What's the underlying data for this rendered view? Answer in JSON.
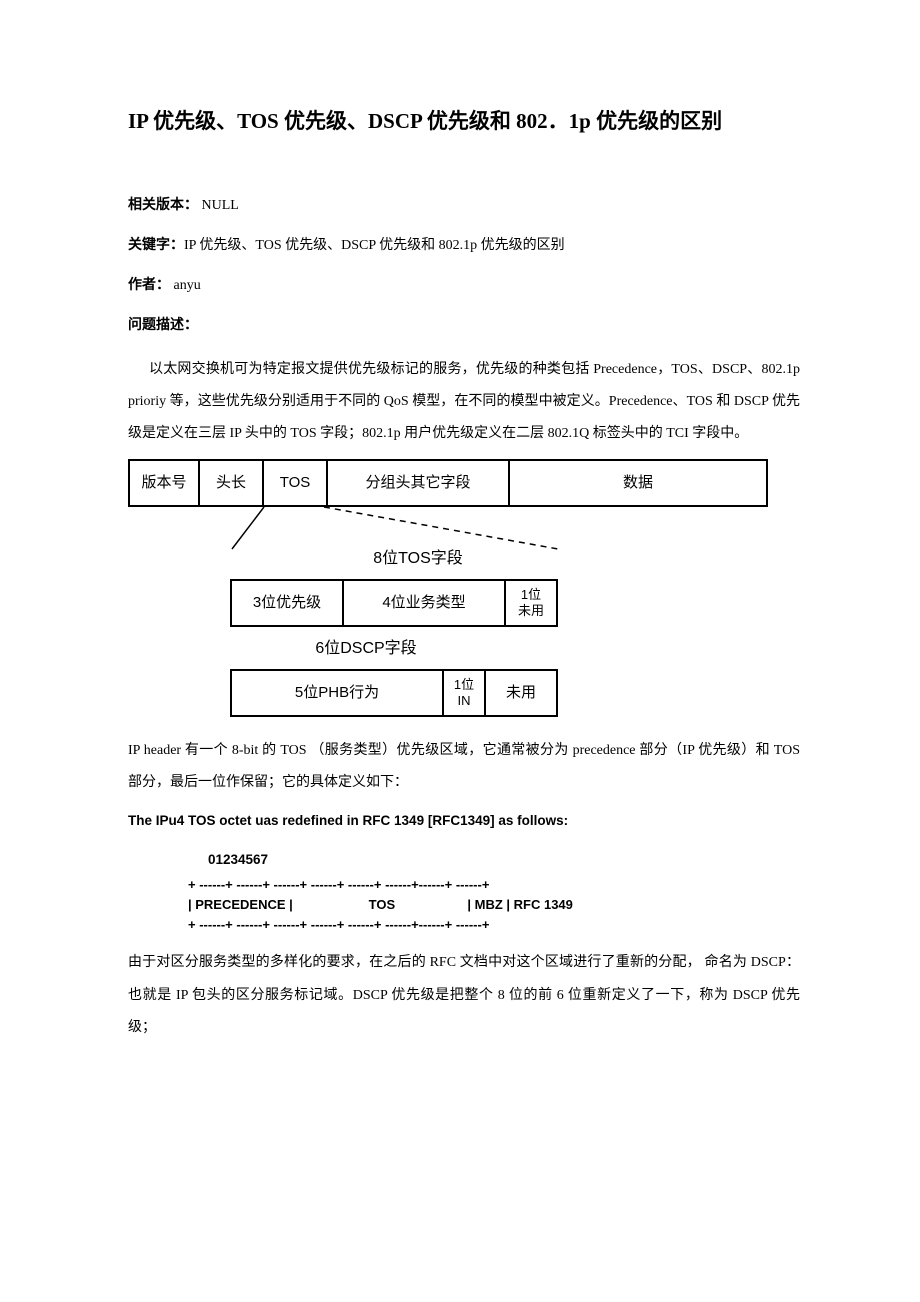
{
  "title": "IP 优先级、TOS 优先级、DSCP 优先级和 802．1p 优先级的区别",
  "meta": {
    "version_label": "相关版本：",
    "version_value": "NULL",
    "keywords_label": "关键字：",
    "keywords_value": "IP 优先级、TOS 优先级、DSCP 优先级和 802.1p 优先级的区别",
    "author_label": "作者：",
    "author_value": "anyu",
    "desc_label": "问题描述："
  },
  "para1": "以太网交换机可为特定报文提供优先级标记的服务，优先级的种类包括 Precedence，TOS、DSCP、802.1p prioriy 等，这些优先级分别适用于不同的 QoS 模型，在不同的模型中被定义。Precedence、TOS 和 DSCP 优先级是定义在三层 IP 头中的 TOS 字段；802.1p 用户优先级定义在二层 802.1Q 标签头中的 TCI 字段中。",
  "diagram1": {
    "row1": [
      "版本号",
      "头长",
      "TOS",
      "分组头其它字段",
      "数据"
    ],
    "caption1": "8位TOS字段",
    "row2": [
      "3位优先级",
      "4位业务类型",
      "1位\n未用"
    ],
    "caption2": "6位DSCP字段",
    "row3": [
      "5位PHB行为",
      "1位\nIN",
      "未用"
    ]
  },
  "para2": "IP header 有一个 8-bit 的 TOS （服务类型）优先级区域，它通常被分为 precedence 部分（IP 优先级）和 TOS 部分，最后一位作保留；它的具体定义如下：",
  "ascii": {
    "title": "The IPu4 TOS octet uas redefined in RFC 1349 [RFC1349] as follows:",
    "bits": "01234567",
    "border": "+ ------+ ------+ ------+ ------+ ------+ ------+------+ ------+",
    "row": "| PRECEDENCE |                     TOS                    | MBZ | RFC 1349"
  },
  "para3": "由于对区分服务类型的多样化的要求，在之后的 RFC 文档中对这个区域进行了重新的分配， 命名为 DSCP：也就是 IP 包头的区分服务标记域。DSCP 优先级是把整个 8 位的前 6 位重新定义了一下，称为 DSCP 优先级；"
}
